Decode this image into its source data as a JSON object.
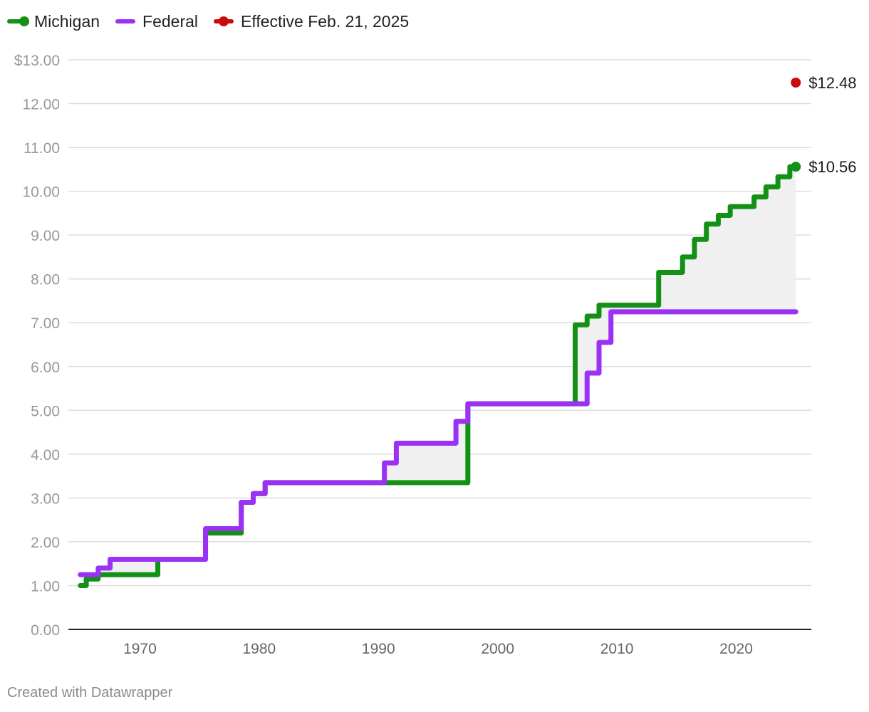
{
  "legend": {
    "michigan": "Michigan",
    "federal": "Federal",
    "effective": "Effective Feb. 21, 2025"
  },
  "colors": {
    "michigan": "#139016",
    "federal": "#9b31f5",
    "effective": "#cc0a0a",
    "gap_fill": "#f0f0f0",
    "grid": "#dddddd",
    "axis": "#222222"
  },
  "footer": "Created with Datawrapper",
  "chart_data": {
    "type": "line",
    "step": true,
    "xlim": [
      1964.0,
      2026.3
    ],
    "ylim": [
      0,
      13
    ],
    "y_ticks": [
      0,
      1,
      2,
      3,
      4,
      5,
      6,
      7,
      8,
      9,
      10,
      11,
      12,
      13
    ],
    "y_tick_labels": [
      "0.00",
      "1.00",
      "2.00",
      "3.00",
      "4.00",
      "5.00",
      "6.00",
      "7.00",
      "8.00",
      "9.00",
      "10.00",
      "11.00",
      "12.00",
      "$13.00"
    ],
    "x_ticks": [
      1970,
      1980,
      1990,
      2000,
      2010,
      2020
    ],
    "x_tick_labels": [
      "1970",
      "1980",
      "1990",
      "2000",
      "2010",
      "2020"
    ],
    "gridlines": true,
    "legend_position": "top-left",
    "series": [
      {
        "name": "Michigan",
        "color": "#139016",
        "x": [
          1965.0,
          1965.5,
          1966.5,
          1971.5,
          1975.5,
          1978.5,
          1979.5,
          1980.5,
          1997.5,
          2006.5,
          2007.5,
          2008.5,
          2013.5,
          2015.5,
          2016.5,
          2017.5,
          2018.5,
          2019.5,
          2021.5,
          2022.5,
          2023.5,
          2024.5,
          2025.0
        ],
        "y": [
          1.0,
          1.15,
          1.25,
          1.6,
          2.2,
          2.9,
          3.1,
          3.35,
          5.15,
          6.95,
          7.15,
          7.4,
          8.15,
          8.5,
          8.9,
          9.25,
          9.45,
          9.65,
          9.87,
          10.1,
          10.33,
          10.56,
          10.56
        ]
      },
      {
        "name": "Federal",
        "color": "#9b31f5",
        "x": [
          1965.0,
          1966.5,
          1967.5,
          1975.5,
          1978.5,
          1979.5,
          1980.5,
          1990.5,
          1991.5,
          1996.5,
          1997.5,
          2007.5,
          2008.5,
          2009.5,
          2025.0
        ],
        "y": [
          1.25,
          1.4,
          1.6,
          2.3,
          2.9,
          3.1,
          3.35,
          3.8,
          4.25,
          4.75,
          5.15,
          5.85,
          6.55,
          7.25,
          7.25
        ]
      },
      {
        "name": "Effective Feb. 21, 2025",
        "color": "#cc0a0a",
        "x": [
          2025.0
        ],
        "y": [
          12.48
        ]
      }
    ],
    "labels": {
      "michigan_end": "$10.56",
      "effective_point": "$12.48"
    }
  }
}
